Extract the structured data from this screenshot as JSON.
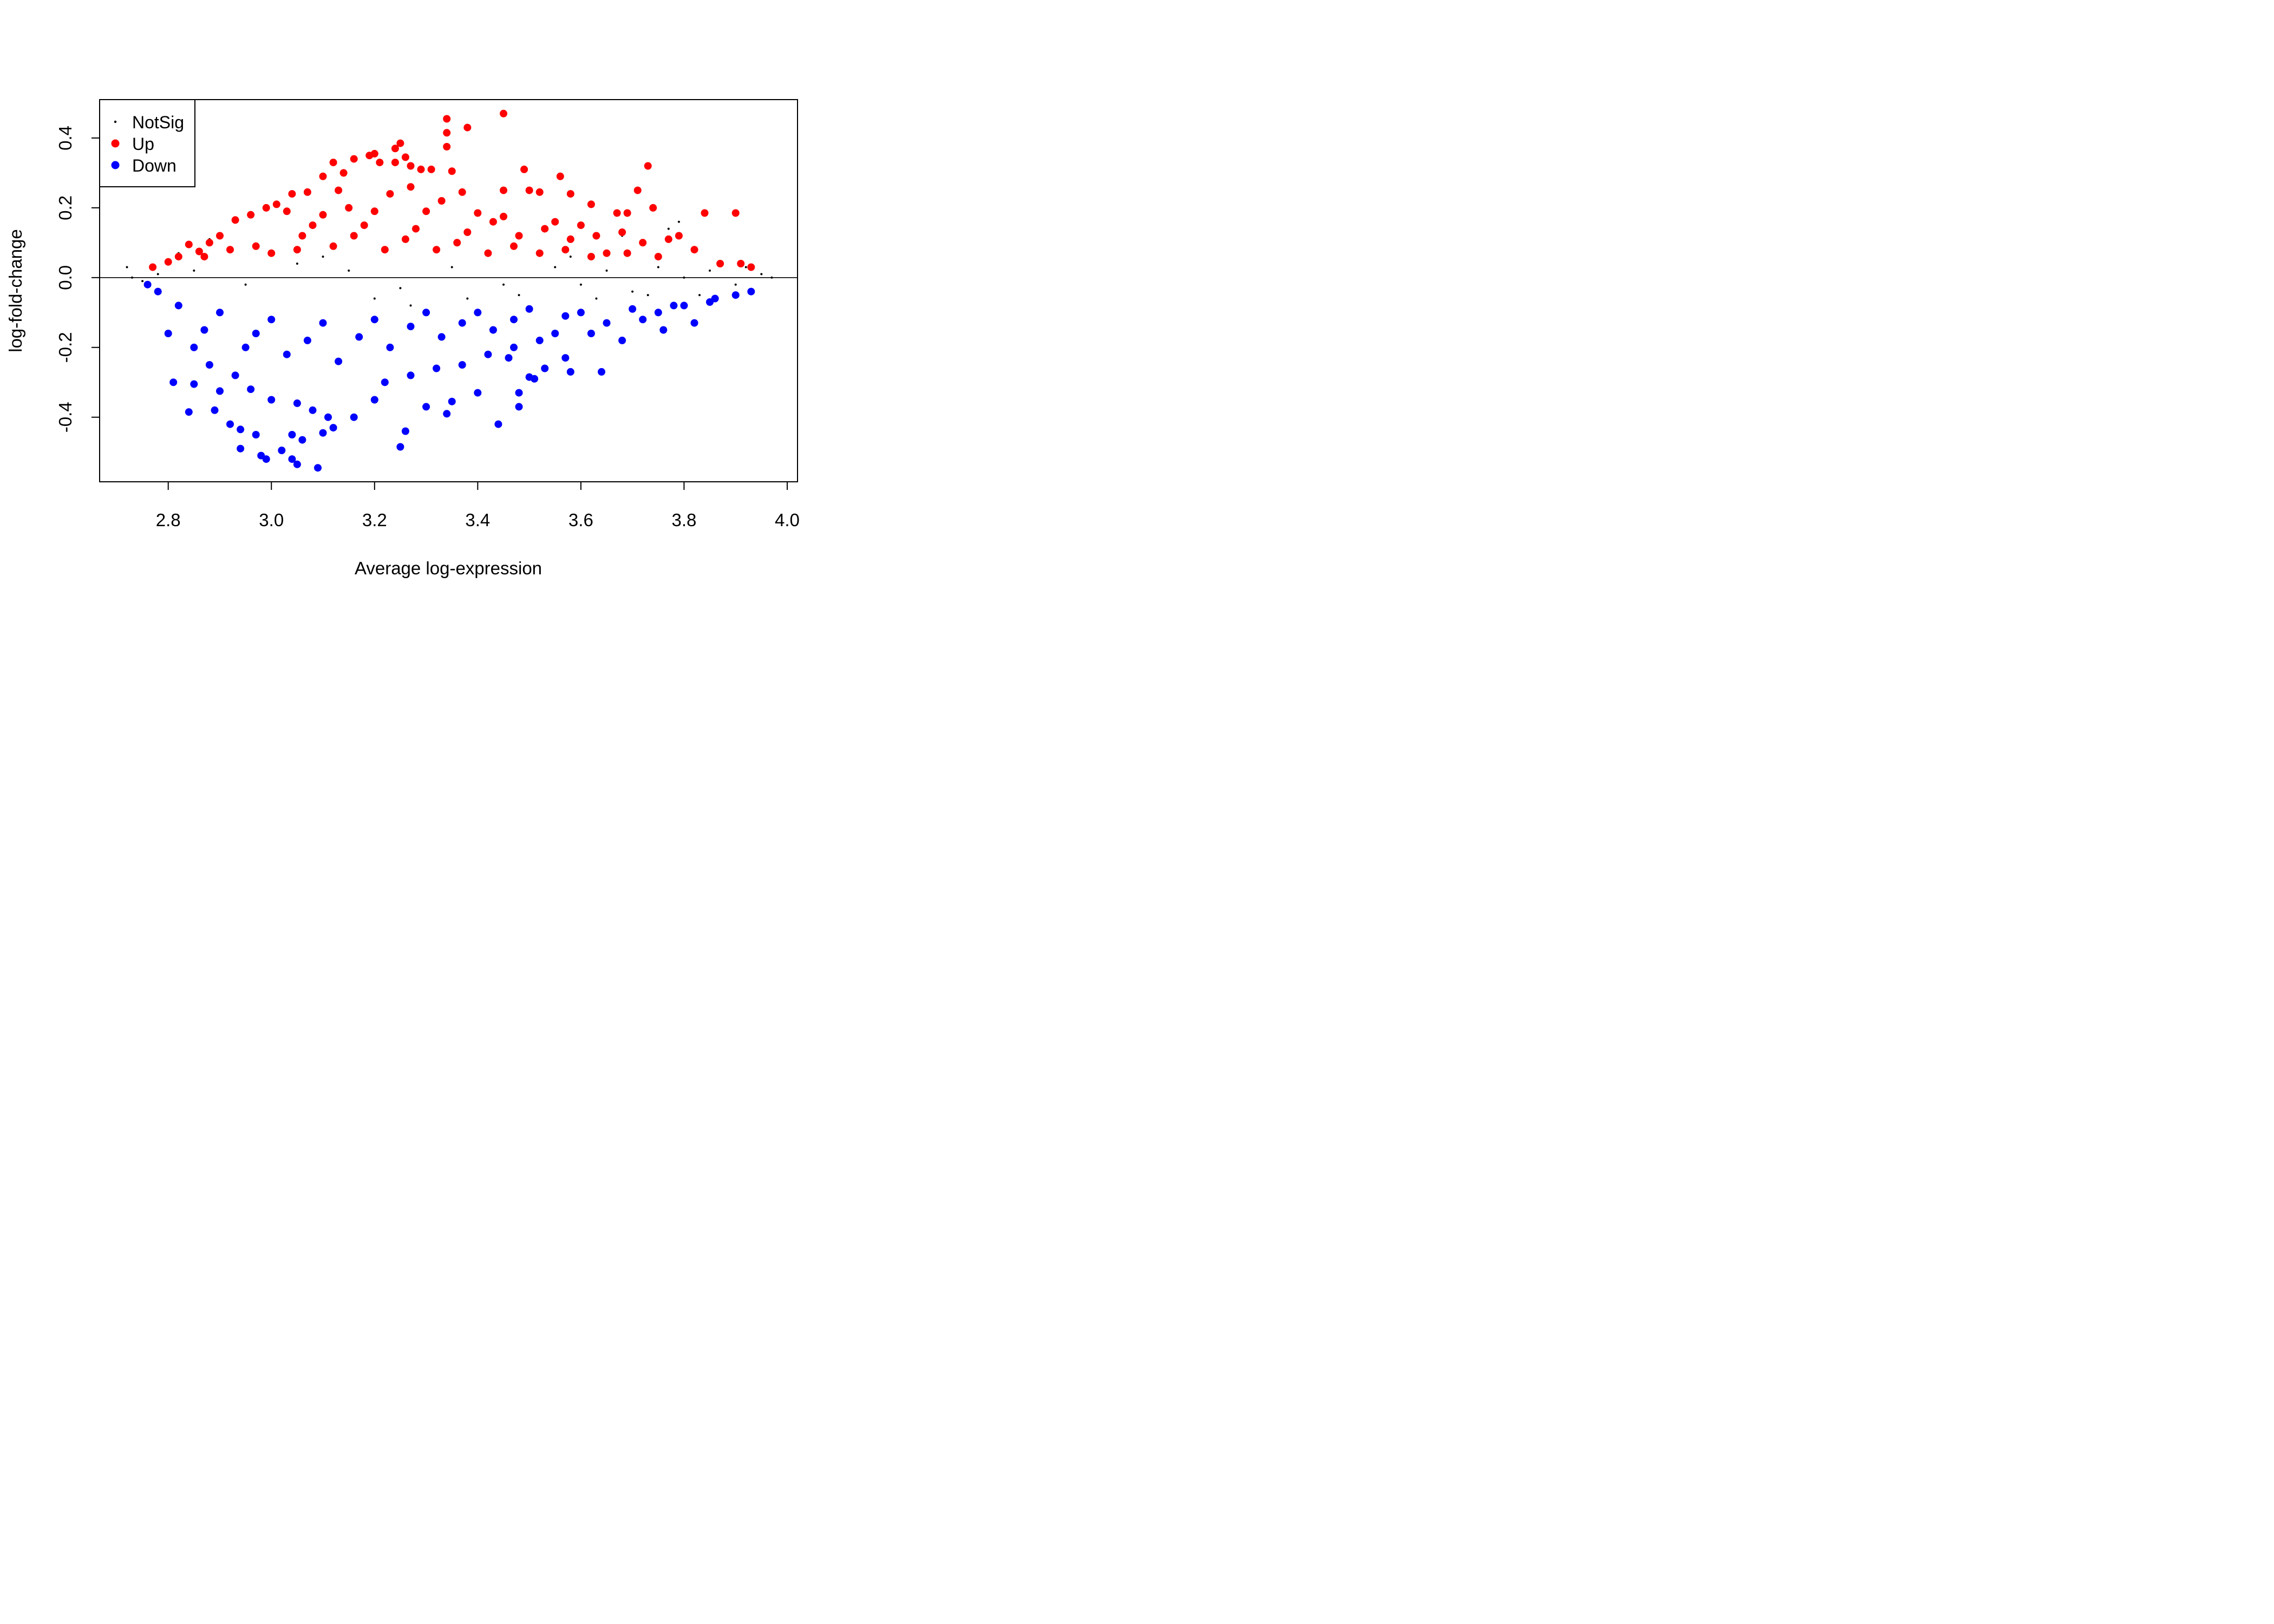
{
  "chart_data": {
    "type": "scatter",
    "title": "",
    "xlabel": "Average log-expression",
    "ylabel": "log-fold-change",
    "xlim": [
      2.667,
      4.02
    ],
    "ylim": [
      -0.585,
      0.51
    ],
    "x_ticks": [
      2.8,
      3.0,
      3.2,
      3.4,
      3.6,
      3.8,
      4.0
    ],
    "x_tick_labels": [
      "2.8",
      "3.0",
      "3.2",
      "3.4",
      "3.6",
      "3.8",
      "4.0"
    ],
    "y_ticks": [
      -0.4,
      -0.2,
      0.0,
      0.2,
      0.4
    ],
    "y_tick_labels": [
      "-0.4",
      "-0.2",
      "0.0",
      "0.2",
      "0.4"
    ],
    "reference_line_y": 0,
    "grid": false,
    "legend": {
      "position": "top-left",
      "entries": [
        {
          "label": "NotSig",
          "color": "#000000",
          "marker": "small-dot"
        },
        {
          "label": "Up",
          "color": "#ff0000",
          "marker": "large-dot"
        },
        {
          "label": "Down",
          "color": "#0000ff",
          "marker": "large-dot"
        }
      ]
    },
    "series": [
      {
        "name": "Up",
        "color": "#ff0000",
        "points": [
          [
            3.45,
            0.47
          ],
          [
            3.34,
            0.455
          ],
          [
            3.38,
            0.43
          ],
          [
            3.34,
            0.415
          ],
          [
            3.25,
            0.385
          ],
          [
            3.24,
            0.37
          ],
          [
            3.34,
            0.375
          ],
          [
            3.19,
            0.35
          ],
          [
            3.2,
            0.355
          ],
          [
            3.26,
            0.345
          ],
          [
            3.12,
            0.33
          ],
          [
            3.16,
            0.34
          ],
          [
            3.73,
            0.32
          ],
          [
            3.49,
            0.31
          ],
          [
            3.56,
            0.29
          ],
          [
            3.29,
            0.31
          ],
          [
            3.31,
            0.31
          ],
          [
            3.1,
            0.29
          ],
          [
            3.14,
            0.3
          ],
          [
            3.21,
            0.33
          ],
          [
            3.35,
            0.305
          ],
          [
            3.24,
            0.33
          ],
          [
            3.27,
            0.32
          ],
          [
            3.45,
            0.25
          ],
          [
            3.71,
            0.25
          ],
          [
            3.58,
            0.24
          ],
          [
            3.5,
            0.25
          ],
          [
            3.52,
            0.245
          ],
          [
            3.04,
            0.24
          ],
          [
            3.07,
            0.245
          ],
          [
            3.27,
            0.26
          ],
          [
            3.37,
            0.245
          ],
          [
            3.62,
            0.21
          ],
          [
            3.74,
            0.2
          ],
          [
            3.84,
            0.185
          ],
          [
            3.9,
            0.185
          ],
          [
            3.67,
            0.185
          ],
          [
            3.69,
            0.185
          ],
          [
            2.99,
            0.2
          ],
          [
            3.01,
            0.21
          ],
          [
            2.96,
            0.18
          ],
          [
            2.93,
            0.165
          ],
          [
            2.9,
            0.12
          ],
          [
            2.88,
            0.1
          ],
          [
            2.84,
            0.095
          ],
          [
            2.86,
            0.075
          ],
          [
            2.82,
            0.06
          ],
          [
            2.8,
            0.045
          ],
          [
            2.77,
            0.03
          ],
          [
            3.1,
            0.18
          ],
          [
            3.15,
            0.2
          ],
          [
            3.2,
            0.19
          ],
          [
            3.3,
            0.19
          ],
          [
            3.4,
            0.185
          ],
          [
            3.45,
            0.175
          ],
          [
            3.55,
            0.16
          ],
          [
            3.6,
            0.15
          ],
          [
            3.68,
            0.13
          ],
          [
            3.72,
            0.1
          ],
          [
            3.77,
            0.11
          ],
          [
            3.79,
            0.12
          ],
          [
            3.82,
            0.08
          ],
          [
            3.87,
            0.04
          ],
          [
            3.91,
            0.04
          ],
          [
            3.75,
            0.06
          ],
          [
            3.65,
            0.07
          ],
          [
            3.57,
            0.08
          ],
          [
            3.47,
            0.09
          ],
          [
            3.36,
            0.1
          ],
          [
            3.26,
            0.11
          ],
          [
            3.16,
            0.12
          ],
          [
            3.06,
            0.12
          ],
          [
            2.97,
            0.09
          ],
          [
            2.92,
            0.08
          ],
          [
            2.87,
            0.06
          ],
          [
            3.0,
            0.07
          ],
          [
            3.05,
            0.08
          ],
          [
            3.12,
            0.09
          ],
          [
            3.22,
            0.08
          ],
          [
            3.32,
            0.08
          ],
          [
            3.42,
            0.07
          ],
          [
            3.52,
            0.07
          ],
          [
            3.62,
            0.06
          ],
          [
            3.69,
            0.07
          ],
          [
            3.28,
            0.14
          ],
          [
            3.18,
            0.15
          ],
          [
            3.08,
            0.15
          ],
          [
            3.38,
            0.13
          ],
          [
            3.48,
            0.12
          ],
          [
            3.58,
            0.11
          ],
          [
            3.33,
            0.22
          ],
          [
            3.23,
            0.24
          ],
          [
            3.13,
            0.25
          ],
          [
            3.03,
            0.19
          ],
          [
            3.43,
            0.16
          ],
          [
            3.53,
            0.14
          ],
          [
            3.63,
            0.12
          ],
          [
            3.93,
            0.03
          ]
        ]
      },
      {
        "name": "Down",
        "color": "#0000ff",
        "points": [
          [
            3.09,
            -0.545
          ],
          [
            3.05,
            -0.535
          ],
          [
            3.04,
            -0.52
          ],
          [
            2.99,
            -0.52
          ],
          [
            3.02,
            -0.495
          ],
          [
            2.98,
            -0.51
          ],
          [
            2.94,
            -0.49
          ],
          [
            3.25,
            -0.485
          ],
          [
            3.06,
            -0.465
          ],
          [
            3.04,
            -0.45
          ],
          [
            2.97,
            -0.45
          ],
          [
            3.12,
            -0.43
          ],
          [
            3.1,
            -0.445
          ],
          [
            3.26,
            -0.44
          ],
          [
            3.44,
            -0.42
          ],
          [
            2.92,
            -0.42
          ],
          [
            2.94,
            -0.435
          ],
          [
            2.84,
            -0.385
          ],
          [
            2.89,
            -0.38
          ],
          [
            3.34,
            -0.39
          ],
          [
            3.48,
            -0.37
          ],
          [
            3.3,
            -0.37
          ],
          [
            3.35,
            -0.355
          ],
          [
            3.48,
            -0.33
          ],
          [
            3.4,
            -0.33
          ],
          [
            2.81,
            -0.3
          ],
          [
            2.85,
            -0.305
          ],
          [
            2.9,
            -0.325
          ],
          [
            3.64,
            -0.27
          ],
          [
            3.58,
            -0.27
          ],
          [
            3.53,
            -0.26
          ],
          [
            3.51,
            -0.29
          ],
          [
            3.5,
            -0.285
          ],
          [
            3.46,
            -0.23
          ],
          [
            3.82,
            -0.13
          ],
          [
            3.76,
            -0.15
          ],
          [
            3.72,
            -0.12
          ],
          [
            3.68,
            -0.18
          ],
          [
            3.62,
            -0.16
          ],
          [
            3.57,
            -0.23
          ],
          [
            3.93,
            -0.04
          ],
          [
            3.86,
            -0.06
          ],
          [
            3.78,
            -0.08
          ],
          [
            3.7,
            -0.09
          ],
          [
            3.6,
            -0.1
          ],
          [
            3.5,
            -0.09
          ],
          [
            3.4,
            -0.1
          ],
          [
            3.3,
            -0.1
          ],
          [
            3.2,
            -0.12
          ],
          [
            3.1,
            -0.13
          ],
          [
            3.0,
            -0.12
          ],
          [
            2.9,
            -0.1
          ],
          [
            2.82,
            -0.08
          ],
          [
            2.78,
            -0.04
          ],
          [
            2.76,
            -0.02
          ],
          [
            2.8,
            -0.16
          ],
          [
            2.85,
            -0.2
          ],
          [
            2.88,
            -0.25
          ],
          [
            2.93,
            -0.28
          ],
          [
            2.96,
            -0.32
          ],
          [
            3.0,
            -0.35
          ],
          [
            3.05,
            -0.36
          ],
          [
            3.08,
            -0.38
          ],
          [
            3.11,
            -0.4
          ],
          [
            3.16,
            -0.4
          ],
          [
            3.2,
            -0.35
          ],
          [
            3.22,
            -0.3
          ],
          [
            3.27,
            -0.28
          ],
          [
            3.32,
            -0.26
          ],
          [
            3.37,
            -0.25
          ],
          [
            3.42,
            -0.22
          ],
          [
            3.47,
            -0.2
          ],
          [
            3.52,
            -0.18
          ],
          [
            3.55,
            -0.16
          ],
          [
            2.95,
            -0.2
          ],
          [
            3.03,
            -0.22
          ],
          [
            3.13,
            -0.24
          ],
          [
            3.23,
            -0.2
          ],
          [
            3.33,
            -0.17
          ],
          [
            3.43,
            -0.15
          ],
          [
            2.87,
            -0.15
          ],
          [
            2.97,
            -0.16
          ],
          [
            3.07,
            -0.18
          ],
          [
            3.17,
            -0.17
          ],
          [
            3.27,
            -0.14
          ],
          [
            3.37,
            -0.13
          ],
          [
            3.47,
            -0.12
          ],
          [
            3.57,
            -0.11
          ],
          [
            3.65,
            -0.13
          ],
          [
            3.75,
            -0.1
          ],
          [
            3.8,
            -0.08
          ],
          [
            3.9,
            -0.05
          ],
          [
            3.85,
            -0.07
          ]
        ]
      },
      {
        "name": "NotSig",
        "color": "#000000",
        "points": [
          [
            2.72,
            0.03
          ],
          [
            2.73,
            0.0
          ],
          [
            2.75,
            -0.01
          ],
          [
            2.78,
            0.01
          ],
          [
            2.85,
            0.02
          ],
          [
            2.95,
            -0.02
          ],
          [
            3.05,
            0.04
          ],
          [
            3.15,
            0.02
          ],
          [
            3.25,
            -0.03
          ],
          [
            3.35,
            0.03
          ],
          [
            3.45,
            -0.02
          ],
          [
            3.55,
            0.03
          ],
          [
            3.6,
            -0.02
          ],
          [
            3.65,
            0.02
          ],
          [
            3.7,
            -0.04
          ],
          [
            3.75,
            0.03
          ],
          [
            3.8,
            0.0
          ],
          [
            3.85,
            0.02
          ],
          [
            3.9,
            -0.02
          ],
          [
            3.95,
            0.01
          ],
          [
            3.97,
            0.0
          ],
          [
            3.79,
            0.16
          ],
          [
            3.77,
            0.14
          ],
          [
            3.68,
            0.12
          ],
          [
            3.27,
            -0.08
          ],
          [
            3.38,
            -0.06
          ],
          [
            3.48,
            -0.05
          ],
          [
            3.58,
            0.06
          ],
          [
            3.63,
            -0.06
          ],
          [
            3.73,
            -0.05
          ],
          [
            3.83,
            -0.05
          ],
          [
            3.92,
            0.03
          ],
          [
            3.1,
            0.06
          ],
          [
            3.2,
            -0.06
          ],
          [
            2.88,
            0.11
          ],
          [
            2.82,
            0.07
          ]
        ]
      }
    ]
  }
}
